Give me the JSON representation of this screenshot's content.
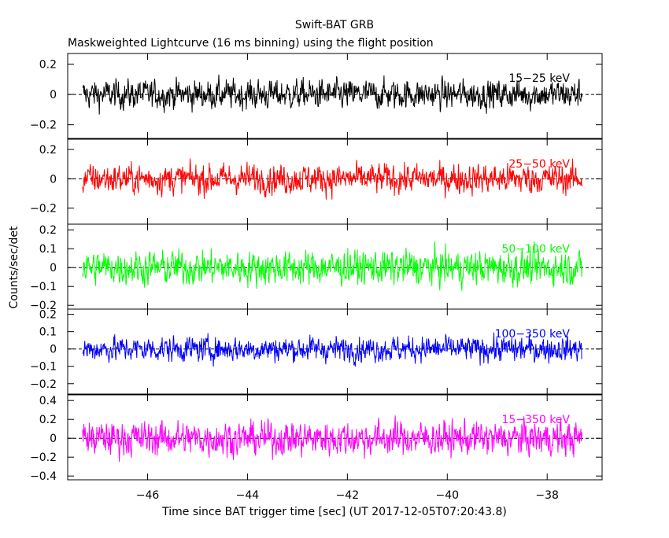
{
  "chart_data": {
    "type": "line",
    "title": "Swift-BAT GRB",
    "subtitle": "Maskweighted Lightcurve (16 ms binning) using the flight position",
    "xlabel": "Time since BAT trigger time [sec] (UT 2017-12-05T07:20:43.8)",
    "ylabel": "Counts/sec/det",
    "xlim": [
      -47.6,
      -36.9
    ],
    "x_ticks": [
      -46,
      -44,
      -42,
      -40,
      -38
    ],
    "x_tick_labels": [
      "−46",
      "−44",
      "−42",
      "−40",
      "−38"
    ],
    "x_data_range": [
      -47.3,
      -37.3
    ],
    "bin_width_sec": 0.016,
    "colors": {
      "black": "#000000",
      "red": "#ff0000",
      "green": "#00ff00",
      "blue": "#0000ff",
      "magenta": "#ff00ff"
    },
    "panels": [
      {
        "name": "15−25 keV",
        "color": "#000000",
        "ylim": [
          -0.29,
          0.27
        ],
        "ticks": [
          -0.2,
          0,
          0.2
        ],
        "tick_labels": [
          "−0.2",
          "0",
          "0.2"
        ],
        "amplitude": 0.08
      },
      {
        "name": "25−50 keV",
        "color": "#ff0000",
        "ylim": [
          -0.31,
          0.27
        ],
        "ticks": [
          -0.2,
          0,
          0.2
        ],
        "tick_labels": [
          "−0.2",
          "0",
          "0.2"
        ],
        "amplitude": 0.085
      },
      {
        "name": "50−100 keV",
        "color": "#00ff00",
        "ylim": [
          -0.22,
          0.23
        ],
        "ticks": [
          -0.2,
          -0.1,
          0,
          0.1,
          0.2
        ],
        "tick_labels": [
          "−0.2",
          "−0.1",
          "0",
          "0.1",
          "0.2"
        ],
        "amplitude": 0.075
      },
      {
        "name": "100−350 keV",
        "color": "#0000ff",
        "ylim": [
          -0.26,
          0.23
        ],
        "ticks": [
          -0.2,
          -0.1,
          0,
          0.1,
          0.2
        ],
        "tick_labels": [
          "−0.2",
          "−0.1",
          "0",
          "0.1",
          "0.2"
        ],
        "amplitude": 0.06
      },
      {
        "name": "15−350 keV",
        "color": "#ff00ff",
        "ylim": [
          -0.44,
          0.46
        ],
        "ticks": [
          -0.4,
          -0.2,
          0,
          0.2,
          0.4
        ],
        "tick_labels": [
          "−0.4",
          "−0.2",
          "0",
          "0.2",
          "0.4"
        ],
        "amplitude": 0.15
      }
    ]
  }
}
